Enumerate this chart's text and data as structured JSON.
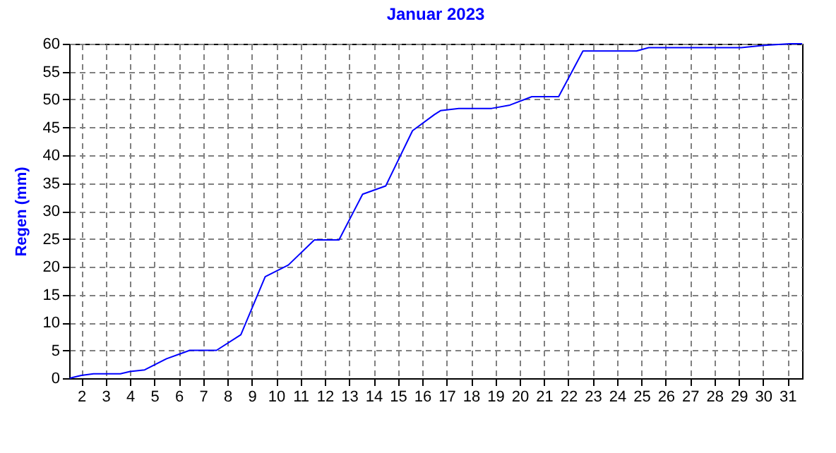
{
  "chart_data": {
    "type": "line",
    "title": "Januar 2023",
    "ylabel": "Regen  (mm)",
    "x": [
      1.52,
      2.0,
      2.5,
      3.6,
      4.0,
      4.6,
      5.5,
      6.45,
      7.55,
      8.55,
      9.55,
      10.5,
      11.57,
      12.58,
      13.55,
      14.5,
      15.6,
      16.5,
      16.75,
      17.5,
      18.85,
      19.6,
      20.5,
      21.6,
      22.6,
      24.8,
      25.3,
      29.1,
      30.05,
      31.1,
      31.6
    ],
    "series": [
      {
        "color": "#0000ff",
        "values": [
          0,
          0.5,
          0.8,
          0.8,
          1.2,
          1.5,
          3.5,
          5.0,
          5.0,
          7.8,
          18.2,
          20.3,
          24.8,
          24.8,
          33.0,
          34.5,
          44.4,
          47.3,
          48.0,
          48.4,
          48.4,
          49.0,
          50.5,
          50.5,
          58.7,
          58.7,
          59.3,
          59.3,
          59.7,
          60,
          60
        ]
      }
    ],
    "xlim": [
      1.5,
      31.6
    ],
    "xticks": [
      2,
      3,
      4,
      5,
      6,
      7,
      8,
      9,
      10,
      11,
      12,
      13,
      14,
      15,
      16,
      17,
      18,
      19,
      20,
      21,
      22,
      23,
      24,
      25,
      26,
      27,
      28,
      29,
      30,
      31
    ],
    "ylim": [
      0,
      60
    ],
    "yticks": [
      0,
      5,
      10,
      15,
      20,
      25,
      30,
      35,
      40,
      45,
      50,
      55,
      60
    ],
    "grid": true,
    "line_style": "solid",
    "marker": "none"
  }
}
